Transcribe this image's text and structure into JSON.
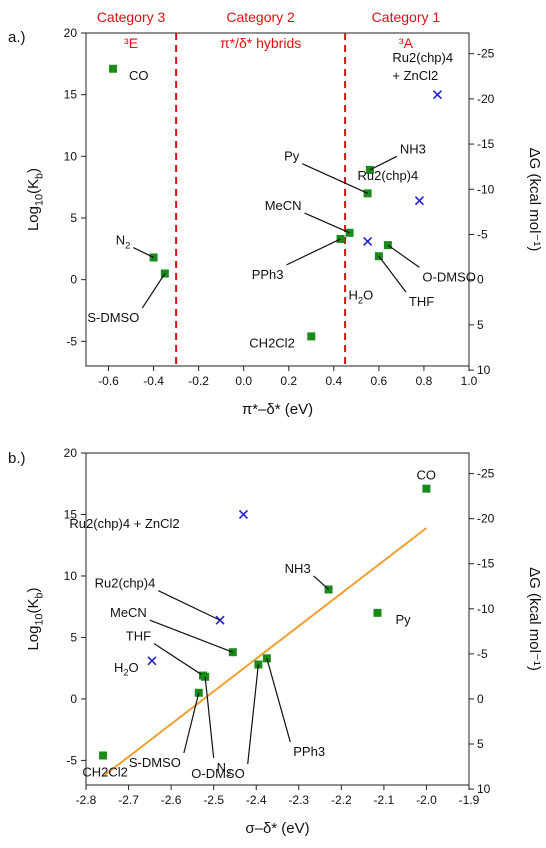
{
  "chart_data": [
    {
      "panel_label": "a.)",
      "type": "scatter",
      "xlabel": "π*–δ* (eV)",
      "ylabel": "Log10(Kb)",
      "ylabel_right": "ΔG (kcal mol⁻¹)",
      "xlim": [
        -0.7,
        1.0
      ],
      "ylim": [
        -7,
        20
      ],
      "x_ticks": [
        -0.6,
        -0.4,
        -0.2,
        0.0,
        0.2,
        0.4,
        0.6,
        0.8,
        1.0
      ],
      "x_tick_labels": [
        "-0.6",
        "-0.4",
        "-0.2",
        "0.0",
        "0.2",
        "0.4",
        "0.6",
        "0.8",
        "1.0"
      ],
      "y_ticks": [
        -5,
        0,
        5,
        10,
        15,
        20
      ],
      "y_tick_labels": [
        "-5",
        "0",
        "5",
        "10",
        "15",
        "20"
      ],
      "right_ticks": [
        10,
        5,
        0,
        -5,
        -10,
        -15,
        -20,
        -25
      ],
      "right_tick_labels": [
        "10",
        "5",
        "0",
        "-5",
        "-10",
        "-15",
        "-20",
        "-25"
      ],
      "right_axis_factor": -0.733,
      "divider_x": [
        -0.3,
        0.45
      ],
      "categories": [
        {
          "line1": "Category 3",
          "line2": "³E",
          "x": -0.5
        },
        {
          "line1": "Category 2",
          "line2": "π*/δ* hybrids",
          "x": 0.075
        },
        {
          "line1": "Category 1",
          "line2": "³A",
          "x": 0.72
        }
      ],
      "series": [
        {
          "marker": "square",
          "color": "#1a8a1a",
          "points": [
            {
              "label": "CO",
              "x": -0.58,
              "y": 17.1
            },
            {
              "label": "N2",
              "x": -0.4,
              "y": 1.8
            },
            {
              "label": "S-DMSO",
              "x": -0.35,
              "y": 0.5
            },
            {
              "label": "CH2Cl2",
              "x": 0.3,
              "y": -4.6
            },
            {
              "label": "PPh3",
              "x": 0.43,
              "y": 3.3
            },
            {
              "label": "MeCN",
              "x": 0.47,
              "y": 3.8
            },
            {
              "label": "Py",
              "x": 0.55,
              "y": 7.0
            },
            {
              "label": "NH3",
              "x": 0.56,
              "y": 8.9
            },
            {
              "label": "THF",
              "x": 0.6,
              "y": 1.9
            },
            {
              "label": "O-DMSO",
              "x": 0.64,
              "y": 2.8
            }
          ]
        },
        {
          "marker": "cross",
          "color": "#2222cc",
          "points": [
            {
              "label": "Ru2(chp)4 + ZnCl2",
              "x": 0.86,
              "y": 15.0
            },
            {
              "label": "Ru2(chp)4",
              "x": 0.78,
              "y": 6.4
            },
            {
              "label": "H2O",
              "x": 0.55,
              "y": 3.1
            }
          ]
        }
      ]
    },
    {
      "panel_label": "b.)",
      "type": "scatter",
      "xlabel": "σ–δ* (eV)",
      "ylabel": "Log10(Kb)",
      "ylabel_right": "ΔG (kcal mol⁻¹)",
      "xlim": [
        -2.8,
        -1.9
      ],
      "ylim": [
        -7,
        20
      ],
      "x_ticks": [
        -2.8,
        -2.7,
        -2.6,
        -2.5,
        -2.4,
        -2.3,
        -2.2,
        -2.1,
        -2.0,
        -1.9
      ],
      "x_tick_labels": [
        "-2.8",
        "-2.7",
        "-2.6",
        "-2.5",
        "-2.4",
        "-2.3",
        "-2.2",
        "-2.1",
        "-2.0",
        "-1.9"
      ],
      "y_ticks": [
        -5,
        0,
        5,
        10,
        15,
        20
      ],
      "y_tick_labels": [
        "-5",
        "0",
        "5",
        "10",
        "15",
        "20"
      ],
      "right_ticks": [
        10,
        5,
        0,
        -5,
        -10,
        -15,
        -20,
        -25
      ],
      "right_tick_labels": [
        "10",
        "5",
        "0",
        "-5",
        "-10",
        "-15",
        "-20",
        "-25"
      ],
      "right_axis_factor": -0.733,
      "fit_line": {
        "color": "#f0a030",
        "x": [
          -2.76,
          -2.0
        ],
        "y": [
          -6.3,
          13.9
        ]
      },
      "series": [
        {
          "marker": "square",
          "color": "#1a8a1a",
          "points": [
            {
              "label": "CO",
              "x": -2.0,
              "y": 17.1
            },
            {
              "label": "NH3",
              "x": -2.23,
              "y": 8.9
            },
            {
              "label": "Py",
              "x": -2.115,
              "y": 7.0
            },
            {
              "label": "MeCN",
              "x": -2.455,
              "y": 3.8
            },
            {
              "label": "PPh3",
              "x": -2.375,
              "y": 3.3
            },
            {
              "label": "O-DMSO",
              "x": -2.395,
              "y": 2.8
            },
            {
              "label": "THF",
              "x": -2.525,
              "y": 1.9
            },
            {
              "label": "N2",
              "x": -2.52,
              "y": 1.8
            },
            {
              "label": "S-DMSO",
              "x": -2.535,
              "y": 0.5
            },
            {
              "label": "CH2Cl2",
              "x": -2.76,
              "y": -4.6
            }
          ]
        },
        {
          "marker": "cross",
          "color": "#2222cc",
          "points": [
            {
              "label": "Ru2(chp)4 + ZnCl2",
              "x": -2.43,
              "y": 15.0
            },
            {
              "label": "Ru2(chp)4",
              "x": -2.485,
              "y": 6.4
            },
            {
              "label": "H2O",
              "x": -2.645,
              "y": 3.1
            }
          ]
        }
      ]
    }
  ]
}
